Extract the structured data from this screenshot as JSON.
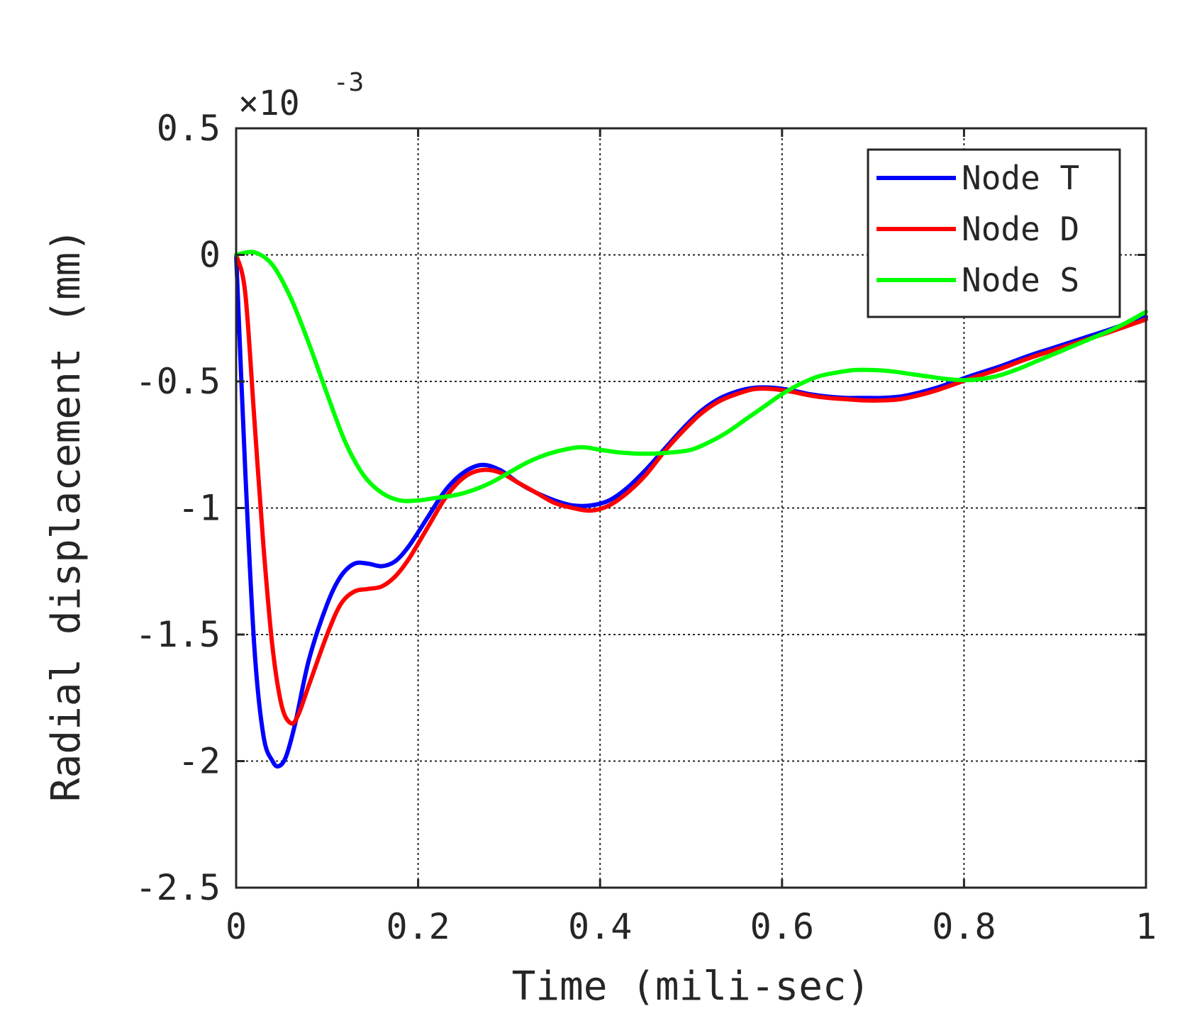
{
  "chart_data": {
    "type": "line",
    "xlabel": "Time (mili-sec)",
    "ylabel": "Radial displacement (mm)",
    "y_multiplier_base": "×10",
    "y_multiplier_exponent": "-3",
    "xlim": [
      0,
      1
    ],
    "ylim": [
      -2.5,
      0.5
    ],
    "x_ticks": [
      0,
      0.2,
      0.4,
      0.6,
      0.8,
      1
    ],
    "x_tick_labels": [
      "0",
      "0.2",
      "0.4",
      "0.6",
      "0.8",
      "1"
    ],
    "y_ticks": [
      -2.5,
      -2,
      -1.5,
      -1,
      -0.5,
      0,
      0.5
    ],
    "y_tick_labels": [
      "-2.5",
      "-2",
      "-1.5",
      "-1",
      "-0.5",
      "0",
      "0.5"
    ],
    "grid": true,
    "legend_position": "top-right",
    "series": [
      {
        "name": "Node T",
        "color": "#0000ff",
        "x": [
          0,
          0.01,
          0.02,
          0.03,
          0.04,
          0.047,
          0.055,
          0.065,
          0.08,
          0.1,
          0.115,
          0.13,
          0.145,
          0.16,
          0.175,
          0.19,
          0.21,
          0.23,
          0.25,
          0.27,
          0.29,
          0.31,
          0.33,
          0.35,
          0.37,
          0.39,
          0.41,
          0.43,
          0.45,
          0.47,
          0.49,
          0.51,
          0.53,
          0.55,
          0.57,
          0.59,
          0.61,
          0.63,
          0.65,
          0.67,
          0.69,
          0.71,
          0.73,
          0.75,
          0.77,
          0.79,
          0.81,
          0.84,
          0.87,
          0.9,
          0.93,
          0.96,
          1.0
        ],
        "y": [
          0,
          -0.85,
          -1.55,
          -1.9,
          -2.0,
          -2.02,
          -1.98,
          -1.85,
          -1.6,
          -1.38,
          -1.27,
          -1.22,
          -1.22,
          -1.23,
          -1.21,
          -1.15,
          -1.04,
          -0.93,
          -0.86,
          -0.83,
          -0.85,
          -0.9,
          -0.94,
          -0.97,
          -0.99,
          -0.99,
          -0.97,
          -0.92,
          -0.85,
          -0.77,
          -0.69,
          -0.62,
          -0.57,
          -0.54,
          -0.525,
          -0.525,
          -0.535,
          -0.55,
          -0.56,
          -0.565,
          -0.565,
          -0.565,
          -0.56,
          -0.545,
          -0.525,
          -0.5,
          -0.475,
          -0.44,
          -0.4,
          -0.365,
          -0.33,
          -0.295,
          -0.245
        ]
      },
      {
        "name": "Node D",
        "color": "#ff0000",
        "x": [
          0,
          0.01,
          0.02,
          0.03,
          0.04,
          0.05,
          0.06,
          0.068,
          0.08,
          0.1,
          0.115,
          0.13,
          0.145,
          0.16,
          0.175,
          0.19,
          0.21,
          0.23,
          0.25,
          0.27,
          0.29,
          0.31,
          0.33,
          0.35,
          0.37,
          0.39,
          0.41,
          0.43,
          0.45,
          0.47,
          0.49,
          0.51,
          0.53,
          0.55,
          0.57,
          0.59,
          0.61,
          0.63,
          0.65,
          0.67,
          0.69,
          0.71,
          0.73,
          0.75,
          0.77,
          0.79,
          0.81,
          0.84,
          0.87,
          0.9,
          0.93,
          0.96,
          1.0
        ],
        "y": [
          0,
          -0.15,
          -0.65,
          -1.15,
          -1.55,
          -1.78,
          -1.85,
          -1.82,
          -1.7,
          -1.5,
          -1.38,
          -1.33,
          -1.32,
          -1.31,
          -1.27,
          -1.2,
          -1.08,
          -0.96,
          -0.88,
          -0.85,
          -0.86,
          -0.9,
          -0.94,
          -0.98,
          -1.0,
          -1.01,
          -0.99,
          -0.94,
          -0.87,
          -0.78,
          -0.7,
          -0.63,
          -0.58,
          -0.55,
          -0.53,
          -0.53,
          -0.54,
          -0.555,
          -0.565,
          -0.57,
          -0.575,
          -0.575,
          -0.57,
          -0.555,
          -0.535,
          -0.51,
          -0.485,
          -0.45,
          -0.41,
          -0.375,
          -0.34,
          -0.305,
          -0.255
        ]
      },
      {
        "name": "Node S",
        "color": "#00ff00",
        "x": [
          0,
          0.02,
          0.04,
          0.06,
          0.08,
          0.1,
          0.12,
          0.14,
          0.16,
          0.18,
          0.2,
          0.22,
          0.24,
          0.26,
          0.28,
          0.3,
          0.32,
          0.34,
          0.36,
          0.38,
          0.4,
          0.42,
          0.44,
          0.46,
          0.48,
          0.5,
          0.52,
          0.54,
          0.56,
          0.58,
          0.6,
          0.62,
          0.64,
          0.66,
          0.68,
          0.7,
          0.72,
          0.74,
          0.76,
          0.78,
          0.8,
          0.82,
          0.84,
          0.86,
          0.88,
          0.9,
          0.92,
          0.94,
          0.96,
          0.98,
          1.0
        ],
        "y": [
          0,
          0.01,
          -0.04,
          -0.17,
          -0.35,
          -0.55,
          -0.74,
          -0.87,
          -0.94,
          -0.97,
          -0.97,
          -0.96,
          -0.95,
          -0.93,
          -0.9,
          -0.86,
          -0.82,
          -0.79,
          -0.77,
          -0.76,
          -0.77,
          -0.78,
          -0.785,
          -0.785,
          -0.78,
          -0.77,
          -0.74,
          -0.7,
          -0.65,
          -0.6,
          -0.55,
          -0.51,
          -0.48,
          -0.465,
          -0.455,
          -0.455,
          -0.46,
          -0.47,
          -0.48,
          -0.49,
          -0.495,
          -0.49,
          -0.475,
          -0.45,
          -0.42,
          -0.39,
          -0.36,
          -0.33,
          -0.3,
          -0.265,
          -0.225
        ]
      }
    ]
  }
}
